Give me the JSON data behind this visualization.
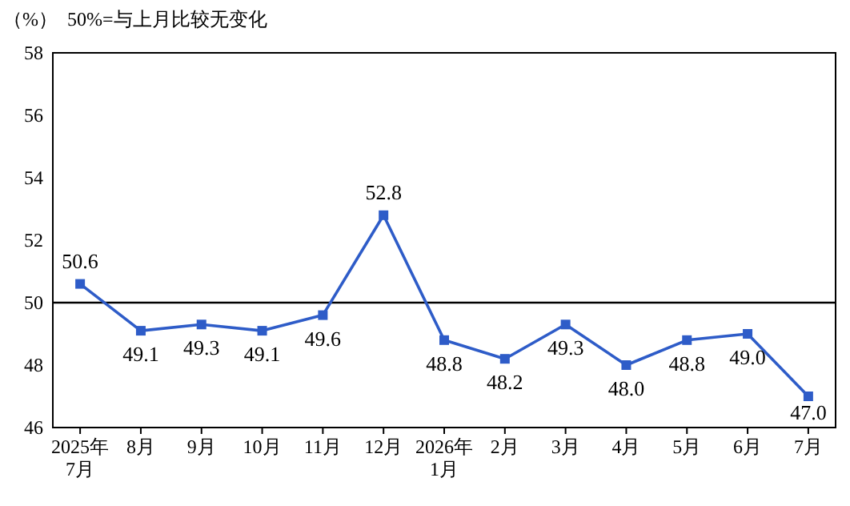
{
  "chart_data": {
    "type": "line",
    "ylabel": "（%）",
    "annotations": [
      "50%=与上月比较无变化"
    ],
    "categories": [
      "2025年\n7月",
      "8月",
      "9月",
      "10月",
      "11月",
      "12月",
      "2026年\n1月",
      "2月",
      "3月",
      "4月",
      "5月",
      "6月",
      "7月"
    ],
    "series": [
      {
        "color": "#2e5cc8",
        "values": [
          50.6,
          49.1,
          49.3,
          49.1,
          49.6,
          52.8,
          48.8,
          48.2,
          49.3,
          48.0,
          48.8,
          49.0,
          47.0
        ],
        "value_labels": [
          "50.6",
          "49.1",
          "49.3",
          "49.1",
          "49.6",
          "52.8",
          "48.8",
          "48.2",
          "49.3",
          "48.0",
          "48.8",
          "49.0",
          "47.0"
        ]
      }
    ],
    "ylim": [
      46,
      58
    ],
    "yticks": [
      46,
      48,
      50,
      52,
      54,
      56,
      58
    ],
    "grid": false,
    "marker": "square",
    "line_style": "solid",
    "ref_lines": [
      {
        "axis": "y",
        "value": 50,
        "color": "#000000"
      }
    ]
  }
}
